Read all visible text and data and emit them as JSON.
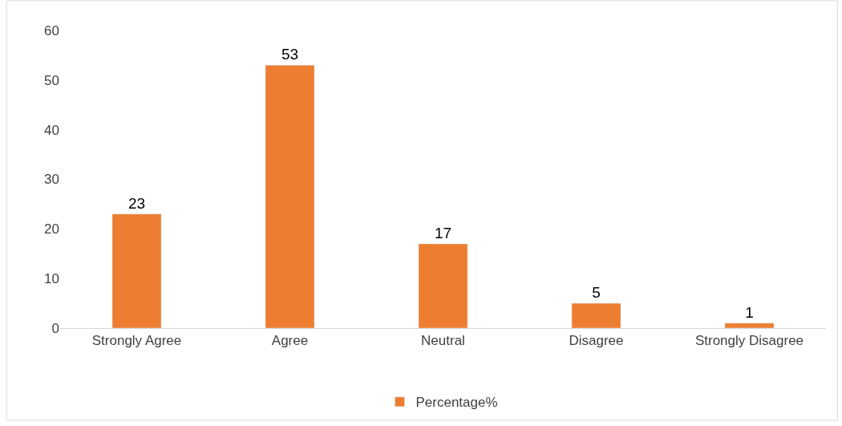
{
  "chart_data": {
    "type": "bar",
    "categories": [
      "Strongly Agree",
      "Agree",
      "Neutral",
      "Disagree",
      "Strongly Disagree"
    ],
    "series": [
      {
        "name": "Percentage%",
        "color": "#ed7d31",
        "values": [
          23,
          53,
          17,
          5,
          1
        ]
      }
    ],
    "ylim": [
      0,
      60
    ],
    "yticks": [
      0,
      10,
      20,
      30,
      40,
      50,
      60
    ],
    "data_labels": true,
    "grid": false,
    "legend": "bottom"
  }
}
